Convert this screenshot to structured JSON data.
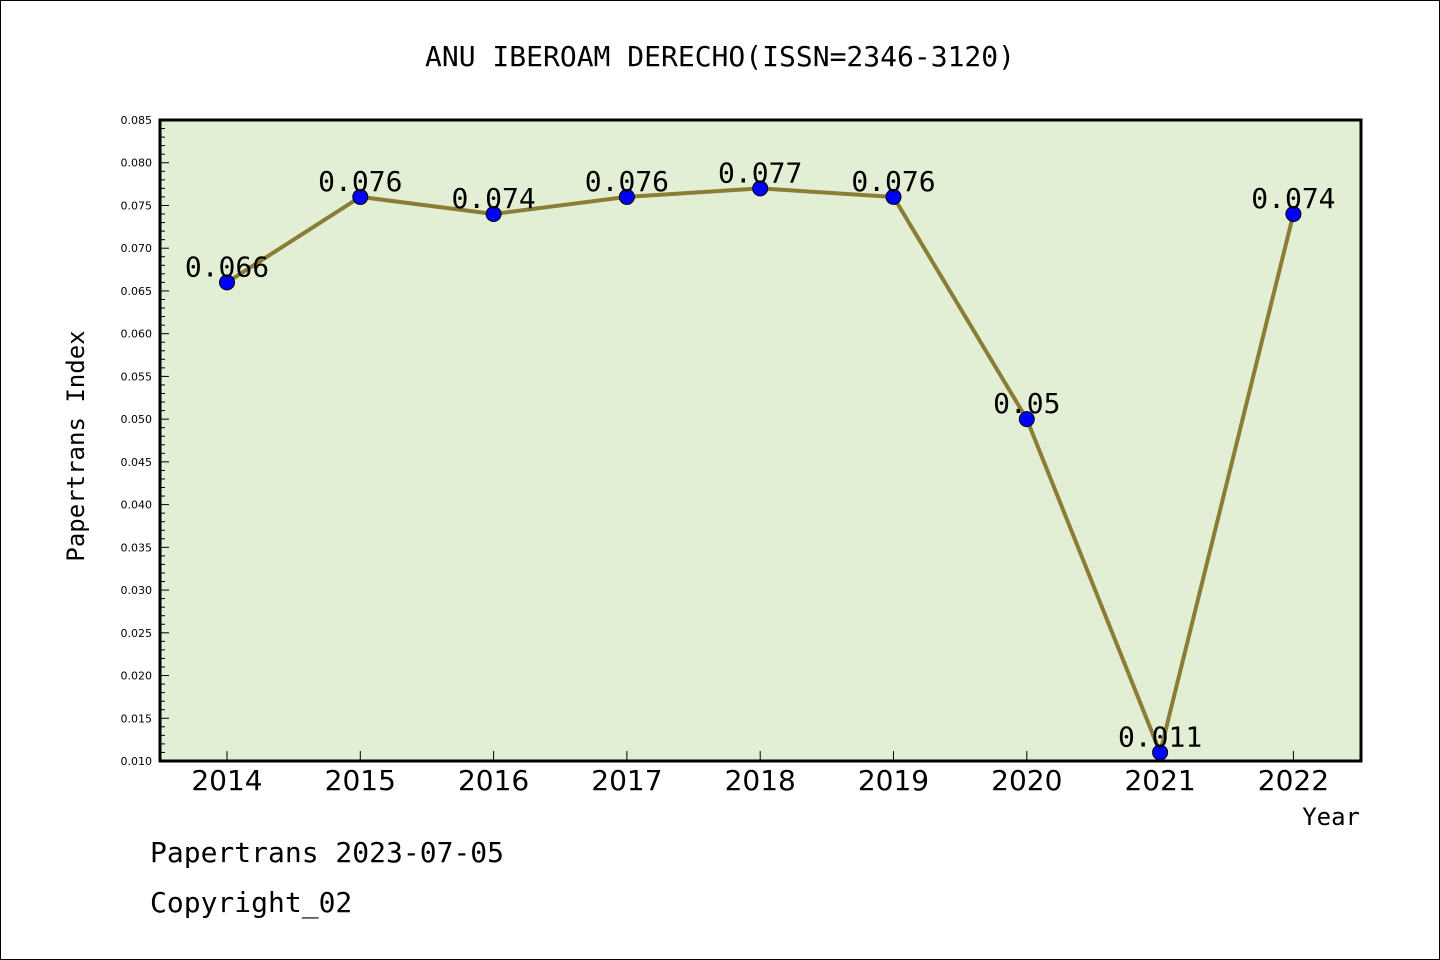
{
  "chart_data": {
    "type": "line",
    "title": "ANU IBEROAM DERECHO(ISSN=2346-3120)",
    "xlabel": "Year",
    "ylabel": "Papertrans Index",
    "categories": [
      "2014",
      "2015",
      "2016",
      "2017",
      "2018",
      "2019",
      "2020",
      "2021",
      "2022"
    ],
    "values": [
      0.066,
      0.076,
      0.074,
      0.076,
      0.077,
      0.076,
      0.05,
      0.011,
      0.074
    ],
    "data_labels": [
      "0.066",
      "0.076",
      "0.074",
      "0.076",
      "0.077",
      "0.076",
      "0.05",
      "0.011",
      "0.074"
    ],
    "ylim": [
      0.01,
      0.085
    ],
    "yticks": [
      "0.010",
      "0.015",
      "0.020",
      "0.025",
      "0.030",
      "0.035",
      "0.040",
      "0.045",
      "0.050",
      "0.055",
      "0.060",
      "0.065",
      "0.070",
      "0.075",
      "0.080",
      "0.085"
    ],
    "grid": false,
    "legend": "none",
    "colors": {
      "plot_background": "#e2efd5",
      "line": "#8b7d35",
      "marker": "#0000ff"
    }
  },
  "footer": {
    "line1": "Papertrans 2023-07-05",
    "line2": "Copyright_02"
  }
}
